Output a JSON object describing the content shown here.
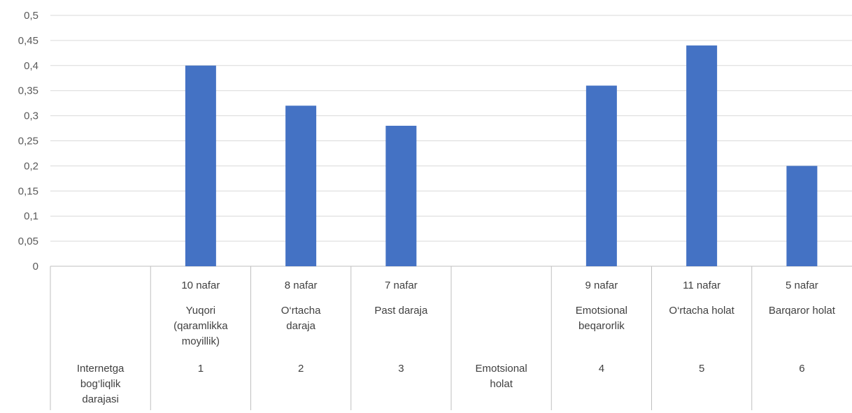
{
  "chart_data": {
    "type": "bar",
    "ylim": [
      0,
      0.5
    ],
    "y_ticks": [
      "0",
      "0,05",
      "0,1",
      "0,15",
      "0,2",
      "0,25",
      "0,3",
      "0,35",
      "0,4",
      "0,45",
      "0,5"
    ],
    "grid": true,
    "bar_color": "#4472C4",
    "categories": [
      {
        "count": "",
        "label": [],
        "index": [],
        "group": [
          "Internetga",
          "bog‘liqlik",
          "darajasi"
        ],
        "value": null
      },
      {
        "count": "10 nafar",
        "label": [
          "Yuqori",
          "(qaramlikka",
          "moyillik)"
        ],
        "index": [
          "1"
        ],
        "group": [],
        "value": 0.4
      },
      {
        "count": "8 nafar",
        "label": [
          "O‘rtacha",
          "daraja"
        ],
        "index": [
          "2"
        ],
        "group": [],
        "value": 0.32
      },
      {
        "count": "7 nafar",
        "label": [
          "Past daraja"
        ],
        "index": [
          "3"
        ],
        "group": [],
        "value": 0.28
      },
      {
        "count": "",
        "label": [],
        "index": [],
        "group": [
          "Emotsional",
          "holat"
        ],
        "value": null
      },
      {
        "count": "9 nafar",
        "label": [
          "Emotsional",
          "beqarorlik"
        ],
        "index": [
          "4"
        ],
        "group": [],
        "value": 0.36
      },
      {
        "count": "11 nafar",
        "label": [
          "O‘rtacha holat"
        ],
        "index": [
          "5"
        ],
        "group": [],
        "value": 0.44
      },
      {
        "count": "5 nafar",
        "label": [
          "Barqaror holat"
        ],
        "index": [
          "6"
        ],
        "group": [],
        "value": 0.2
      }
    ]
  }
}
